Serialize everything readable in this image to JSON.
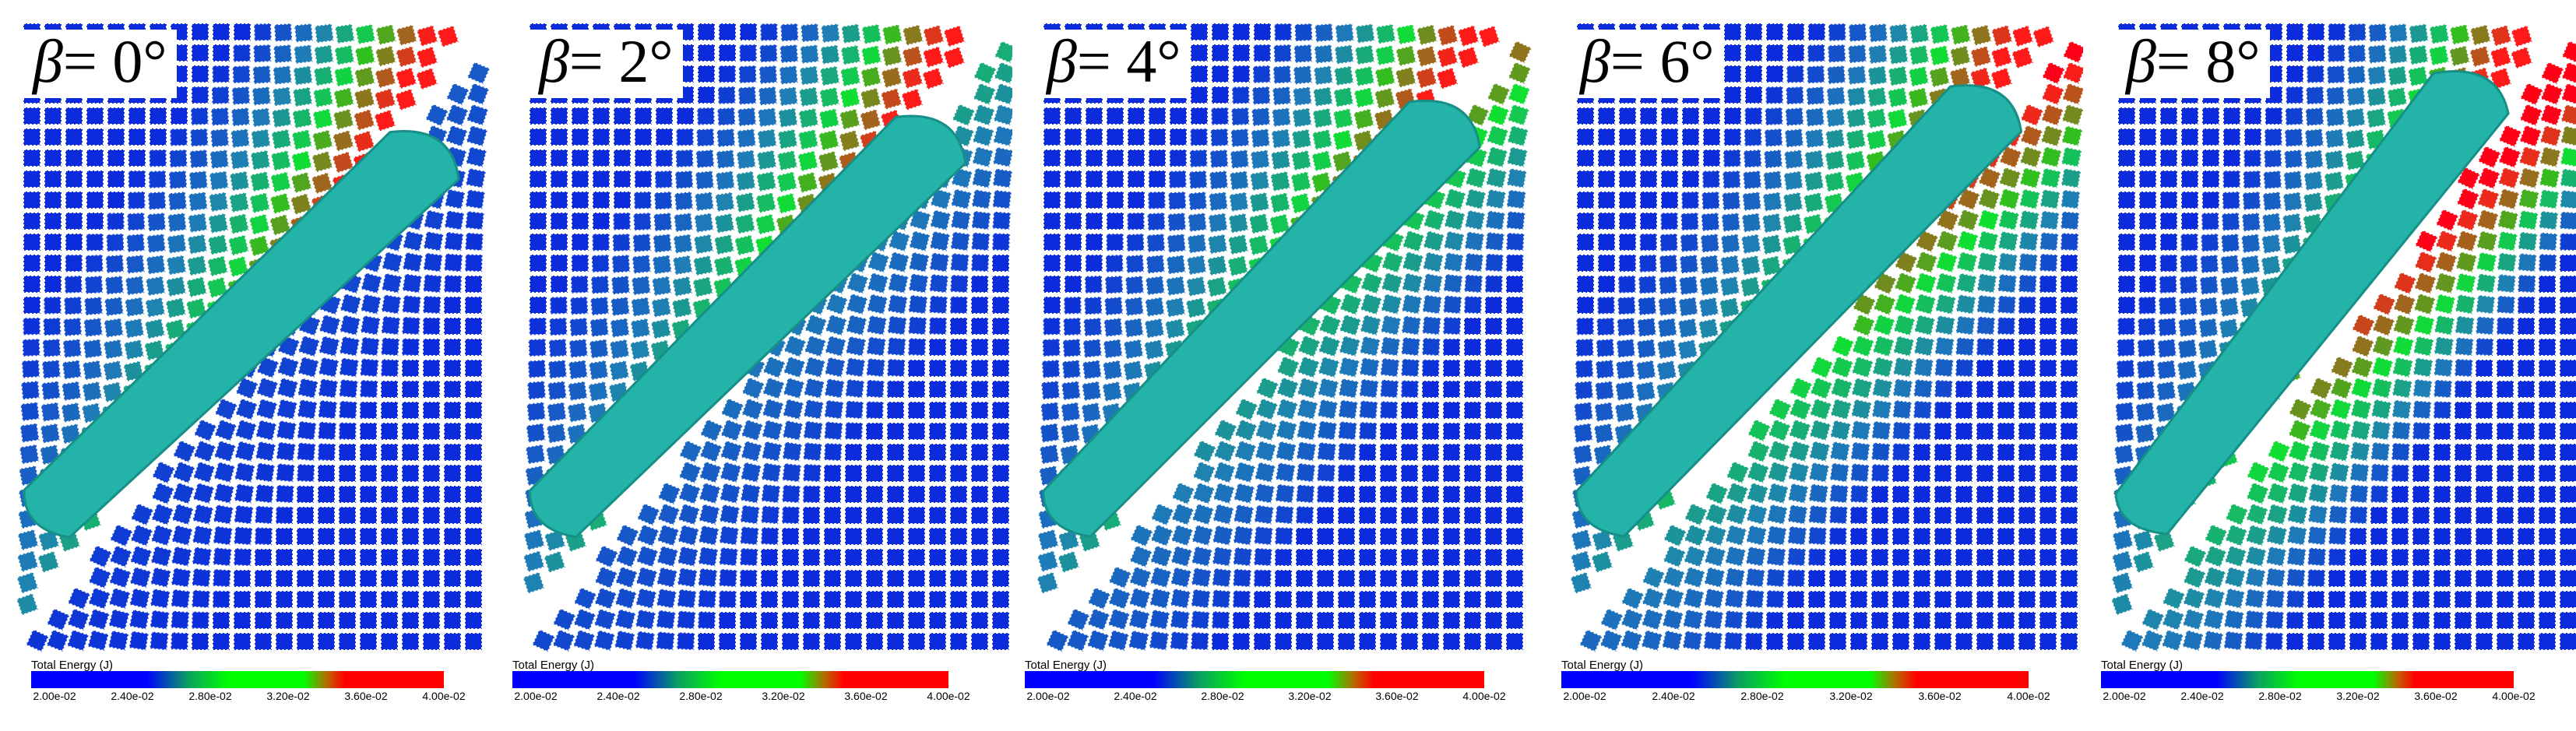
{
  "panels": [
    {
      "beta_symbol": "β",
      "beta_value": "= 0°"
    },
    {
      "beta_symbol": "β",
      "beta_value": "= 2°"
    },
    {
      "beta_symbol": "β",
      "beta_value": "= 4°"
    },
    {
      "beta_symbol": "β",
      "beta_value": "= 6°"
    },
    {
      "beta_symbol": "β",
      "beta_value": "= 8°"
    }
  ],
  "colorbar": {
    "title": "Total Energy (J)",
    "ticks": [
      "2.00e-02",
      "2.40e-02",
      "2.80e-02",
      "3.20e-02",
      "3.60e-02",
      "4.00e-02"
    ],
    "colors": [
      "#0000ff",
      "#00b000",
      "#00ff00",
      "#ff0000"
    ]
  },
  "colors": {
    "ship_hull": "#23b3a8",
    "ice_low": "#0b2bdc",
    "ice_mid": "#1f7fb5",
    "ice_high": "#ff1a1a"
  }
}
